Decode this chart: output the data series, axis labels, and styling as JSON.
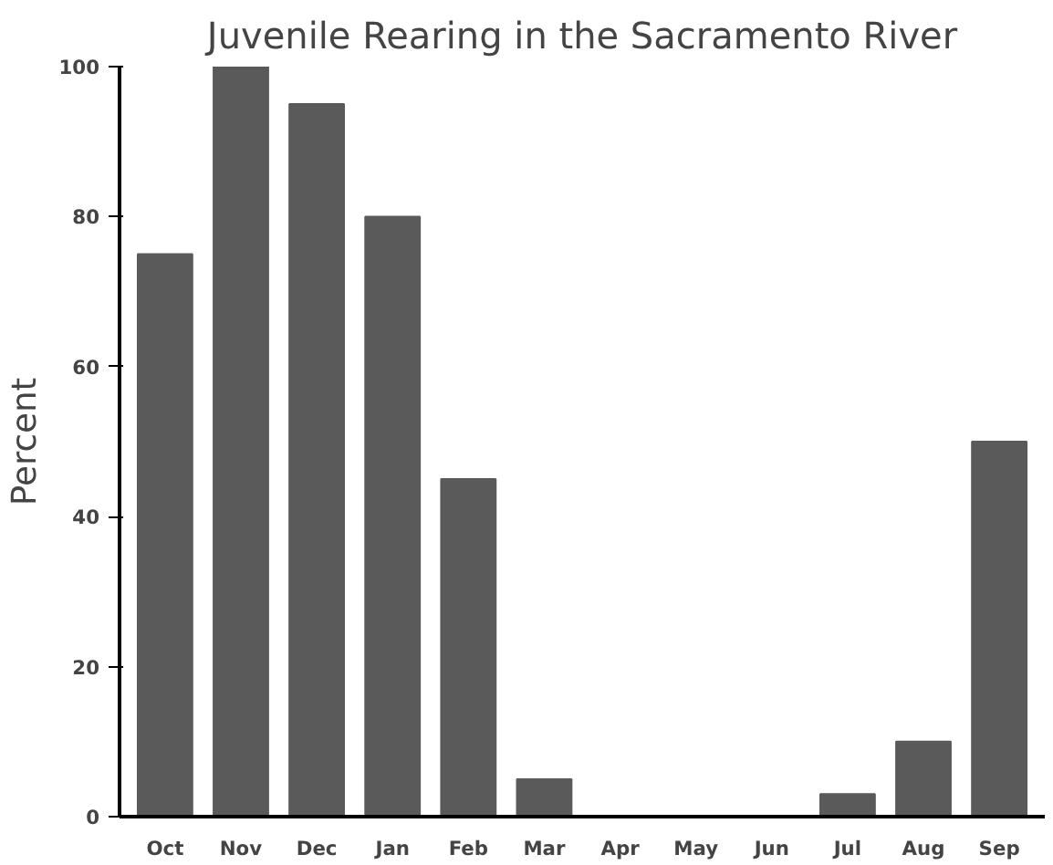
{
  "chart_data": {
    "type": "bar",
    "title": "Juvenile Rearing in the Sacramento River",
    "ylabel": "Percent",
    "categories": [
      "Oct",
      "Nov",
      "Dec",
      "Jan",
      "Feb",
      "Mar",
      "Apr",
      "May",
      "Jun",
      "Jul",
      "Aug",
      "Sep"
    ],
    "values": [
      75,
      100,
      95,
      80,
      45,
      5,
      0,
      0,
      0,
      3,
      10,
      50
    ],
    "color": "#5a5a5a",
    "ylim": [
      0,
      100
    ],
    "yticks": [
      0,
      20,
      40,
      60,
      80,
      100
    ],
    "grid": false
  }
}
